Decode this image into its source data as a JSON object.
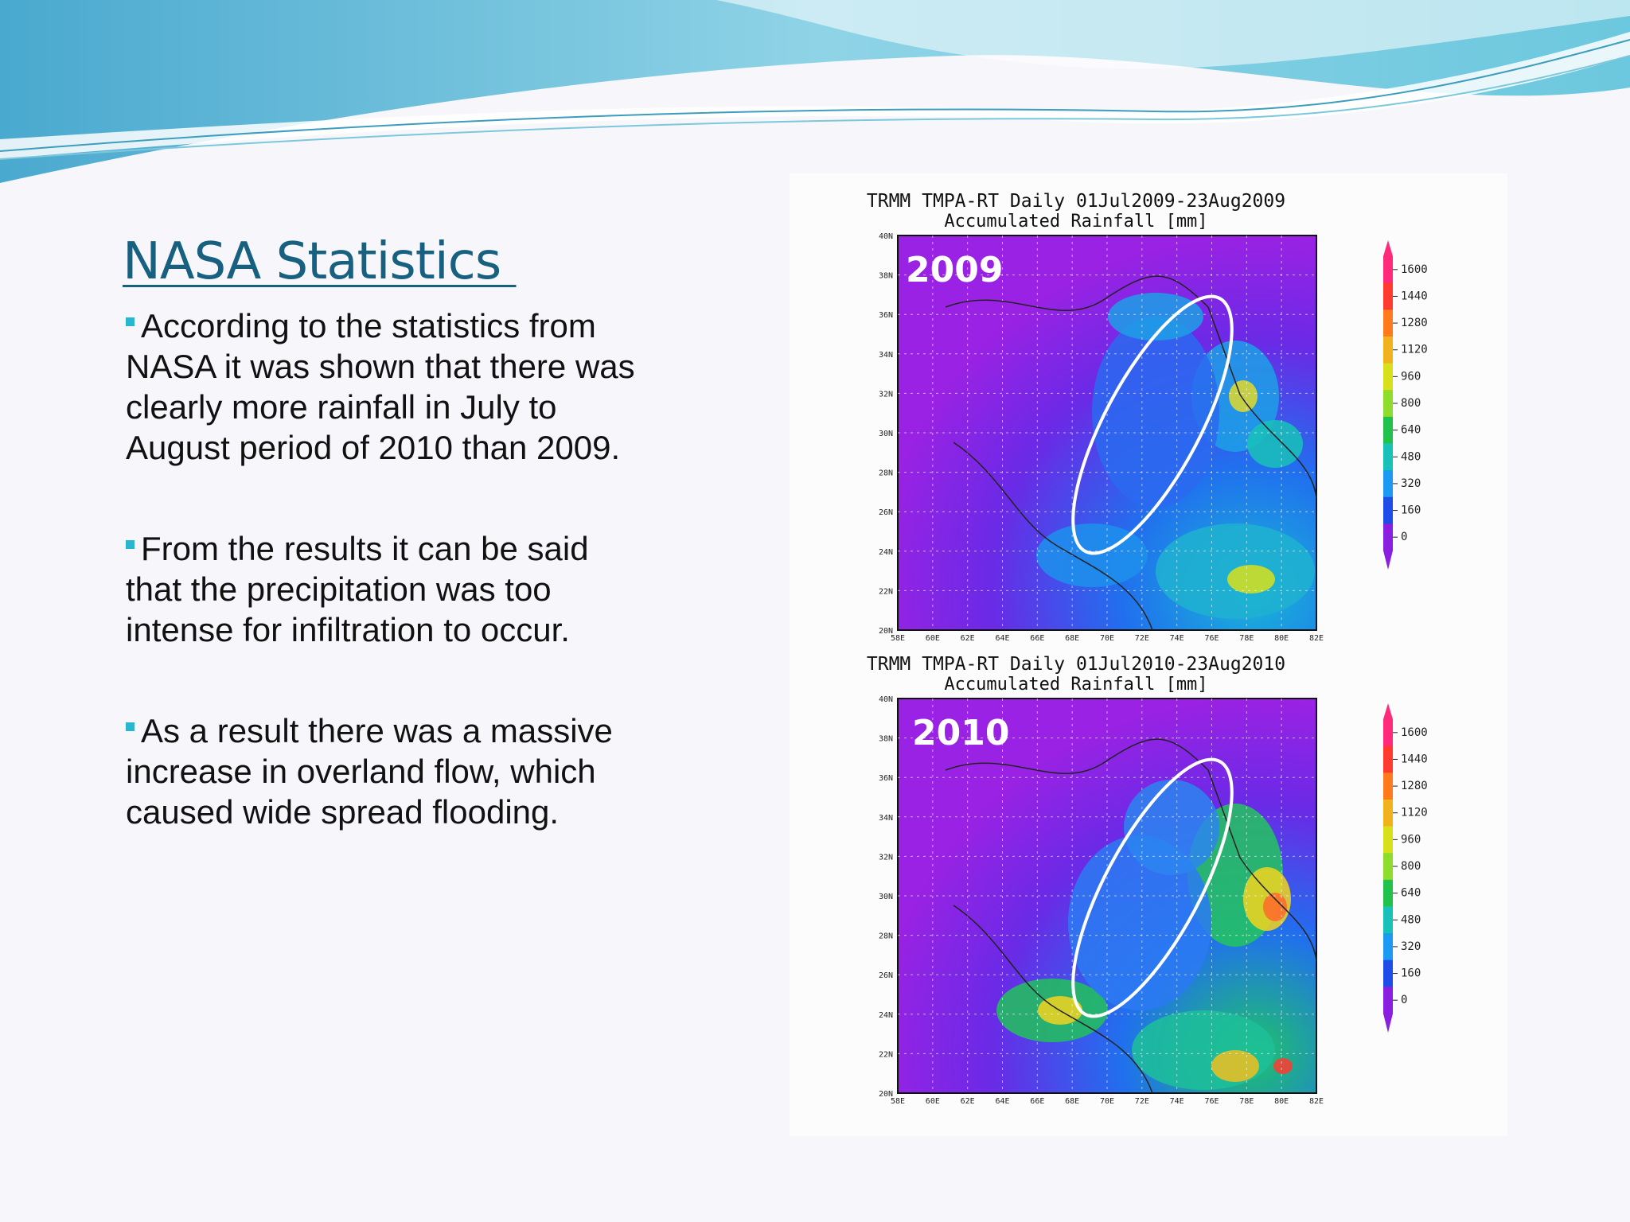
{
  "slide": {
    "title": "NASA Statistics ",
    "bullets": [
      "According to the statistics from NASA it was shown that there was clearly more rainfall in July to August period of 2010 than 2009.",
      "From the results it can be said that the precipitation was too intense for infiltration to occur.",
      "As a result there was a massive increase in overland flow, which caused wide spread flooding."
    ]
  },
  "colors": {
    "title": "#17607f",
    "bullet_marker": "#2bb6d0",
    "wave_light": "#8fd3e6",
    "wave_dark": "#5bb8d3"
  },
  "maps": [
    {
      "title_line1": "TRMM TMPA-RT Daily 01Jul2009-23Aug2009",
      "title_line2": "Accumulated Rainfall [mm]",
      "year": "2009"
    },
    {
      "title_line1": "TRMM TMPA-RT Daily 01Jul2010-23Aug2010",
      "title_line2": "Accumulated Rainfall [mm]",
      "year": "2010"
    }
  ],
  "latitude_ticks": [
    "40N",
    "38N",
    "36N",
    "34N",
    "32N",
    "30N",
    "28N",
    "26N",
    "24N",
    "22N",
    "20N"
  ],
  "longitude_ticks": [
    "58E",
    "60E",
    "62E",
    "64E",
    "66E",
    "68E",
    "70E",
    "72E",
    "74E",
    "76E",
    "78E",
    "80E",
    "82E"
  ],
  "colorbar": {
    "ticks": [
      "1600",
      "1440",
      "1280",
      "1120",
      "960",
      "800",
      "640",
      "480",
      "320",
      "160",
      "0"
    ],
    "colors": [
      "#ff2a7a",
      "#ff3b30",
      "#ff7a1a",
      "#f2b21e",
      "#d8e01b",
      "#8fdc2a",
      "#21c24b",
      "#19c2b8",
      "#1a9af0",
      "#1f4de8",
      "#8a1fe0"
    ]
  }
}
